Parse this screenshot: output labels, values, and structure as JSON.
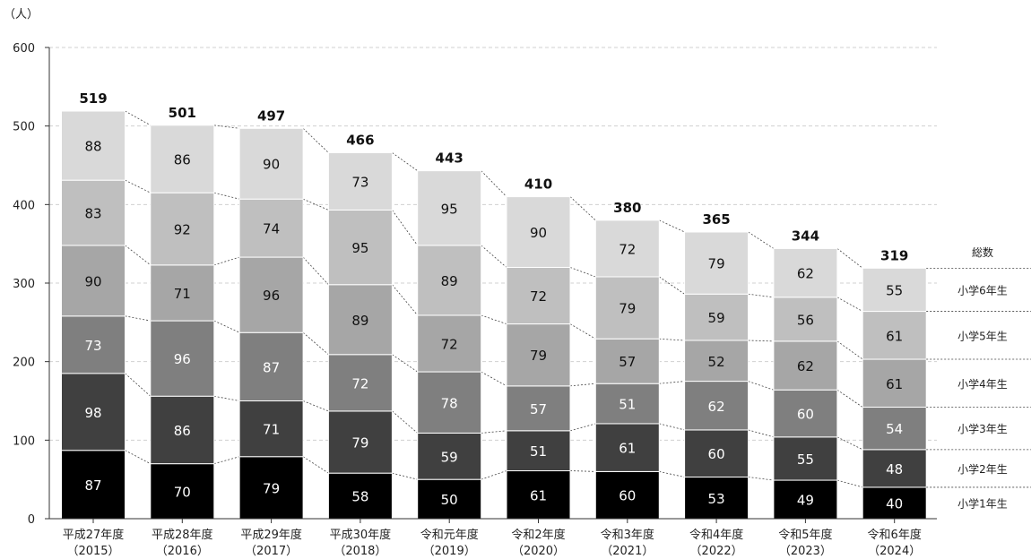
{
  "chart_data": {
    "type": "bar",
    "stacked": true,
    "unit_label": "（人）",
    "ylim": [
      0,
      600
    ],
    "yticks": [
      0,
      100,
      200,
      300,
      400,
      500,
      600
    ],
    "grid": true,
    "categories": [
      [
        "平成27年度",
        "（2015）"
      ],
      [
        "平成28年度",
        "（2016）"
      ],
      [
        "平成29年度",
        "（2017）"
      ],
      [
        "平成30年度",
        "（2018）"
      ],
      [
        "令和元年度",
        "（2019）"
      ],
      [
        "令和2年度",
        "（2020）"
      ],
      [
        "令和3年度",
        "（2021）"
      ],
      [
        "令和4年度",
        "（2022）"
      ],
      [
        "令和5年度",
        "（2023）"
      ],
      [
        "令和6年度",
        "（2024）"
      ]
    ],
    "series": [
      {
        "name": "小学1年生",
        "color": "#000000",
        "text_color": "#ffffff",
        "values": [
          87,
          70,
          79,
          58,
          50,
          61,
          60,
          53,
          49,
          40
        ]
      },
      {
        "name": "小学2年生",
        "color": "#404040",
        "text_color": "#ffffff",
        "values": [
          98,
          86,
          71,
          79,
          59,
          51,
          61,
          60,
          55,
          48
        ]
      },
      {
        "name": "小学3年生",
        "color": "#7f7f7f",
        "text_color": "#ffffff",
        "values": [
          73,
          96,
          87,
          72,
          78,
          57,
          51,
          62,
          60,
          54
        ]
      },
      {
        "name": "小学4年生",
        "color": "#a6a6a6",
        "text_color": "#111111",
        "values": [
          90,
          71,
          96,
          89,
          72,
          79,
          57,
          52,
          62,
          61
        ]
      },
      {
        "name": "小学5年生",
        "color": "#bfbfbf",
        "text_color": "#111111",
        "values": [
          83,
          92,
          74,
          95,
          89,
          72,
          79,
          59,
          56,
          61
        ]
      },
      {
        "name": "小学6年生",
        "color": "#d9d9d9",
        "text_color": "#111111",
        "values": [
          88,
          86,
          90,
          73,
          95,
          90,
          72,
          79,
          62,
          55
        ]
      }
    ],
    "totals_label": "総数",
    "totals": [
      519,
      501,
      497,
      466,
      443,
      410,
      380,
      365,
      344,
      319
    ]
  }
}
